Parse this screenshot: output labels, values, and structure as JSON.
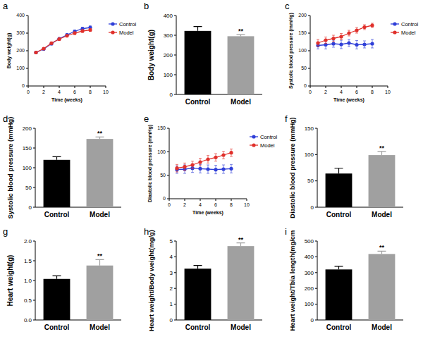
{
  "chart_data": [
    {
      "type": "line",
      "title": "a",
      "x": [
        1,
        2,
        3,
        4,
        5,
        6,
        7,
        8
      ],
      "xlim": [
        0,
        10
      ],
      "xticks": [
        0,
        2,
        4,
        6,
        8,
        10
      ],
      "ylim": [
        0,
        400
      ],
      "yticks": [
        0,
        100,
        200,
        300,
        400
      ],
      "x_label": "Time (weeks)",
      "y_label": "Body weight(g)",
      "legend": "right",
      "series": [
        {
          "name": "Control",
          "color": "#2f3fd8",
          "marker": "circle",
          "values": [
            190,
            210,
            240,
            268,
            290,
            310,
            325,
            332
          ],
          "errors": [
            6,
            6,
            7,
            7,
            8,
            8,
            9,
            9
          ]
        },
        {
          "name": "Model",
          "color": "#e0302b",
          "marker": "circle",
          "values": [
            190,
            212,
            243,
            266,
            285,
            300,
            312,
            318
          ],
          "errors": [
            6,
            6,
            7,
            7,
            7,
            8,
            8,
            8
          ]
        }
      ]
    },
    {
      "type": "bar",
      "title": "b",
      "categories": [
        "Control",
        "Model"
      ],
      "values": [
        322,
        295
      ],
      "errors": [
        22,
        8
      ],
      "colors": [
        "#000000",
        "#a0a0a0"
      ],
      "ylim": [
        0,
        400
      ],
      "yticks": [
        0,
        100,
        200,
        300,
        400
      ],
      "y_label": "Body weight(g)",
      "annotations": [
        {
          "text": "**",
          "x": "Model"
        }
      ]
    },
    {
      "type": "line",
      "title": "c",
      "x": [
        1,
        2,
        3,
        4,
        5,
        6,
        7,
        8
      ],
      "xlim": [
        0,
        10
      ],
      "xticks": [
        0,
        2,
        4,
        6,
        8,
        10
      ],
      "ylim": [
        0,
        200
      ],
      "yticks": [
        0,
        50,
        100,
        150,
        200
      ],
      "x_label": "Time (weeks)",
      "y_label": "Systolic blood pressure (mmHg)",
      "legend": "right",
      "series": [
        {
          "name": "Control",
          "color": "#2f3fd8",
          "marker": "circle",
          "values": [
            115,
            117,
            120,
            118,
            122,
            117,
            118,
            120
          ],
          "errors": [
            10,
            12,
            10,
            12,
            10,
            12,
            10,
            12
          ]
        },
        {
          "name": "Model",
          "color": "#e0302b",
          "marker": "circle",
          "values": [
            122,
            130,
            135,
            140,
            150,
            158,
            167,
            172
          ],
          "errors": [
            10,
            9,
            9,
            9,
            8,
            8,
            7,
            6
          ]
        }
      ]
    },
    {
      "type": "bar",
      "title": "d",
      "categories": [
        "Control",
        "Model"
      ],
      "values": [
        120,
        173
      ],
      "errors": [
        8,
        5
      ],
      "colors": [
        "#000000",
        "#a0a0a0"
      ],
      "ylim": [
        0,
        200
      ],
      "yticks": [
        0,
        50,
        100,
        150,
        200
      ],
      "y_label": "Systolic blood pressure (mmHg)",
      "annotations": [
        {
          "text": "**",
          "x": "Model"
        }
      ]
    },
    {
      "type": "line",
      "title": "e",
      "x": [
        1,
        2,
        3,
        4,
        5,
        6,
        7,
        8
      ],
      "xlim": [
        0,
        10
      ],
      "xticks": [
        0,
        2,
        4,
        6,
        8,
        10
      ],
      "ylim": [
        0,
        150
      ],
      "yticks": [
        0,
        50,
        100,
        150
      ],
      "x_label": "Time (weeks)",
      "y_label": "Diastolic blood pressure (mmHg)",
      "legend": "right",
      "series": [
        {
          "name": "Control",
          "color": "#2f3fd8",
          "marker": "circle",
          "values": [
            62,
            63,
            65,
            64,
            63,
            62,
            63,
            64
          ],
          "errors": [
            8,
            9,
            9,
            9,
            9,
            9,
            9,
            9
          ]
        },
        {
          "name": "Model",
          "color": "#e0302b",
          "marker": "circle",
          "values": [
            65,
            68,
            72,
            78,
            84,
            88,
            93,
            98
          ],
          "errors": [
            8,
            8,
            8,
            8,
            8,
            8,
            8,
            8
          ]
        }
      ]
    },
    {
      "type": "bar",
      "title": "f",
      "categories": [
        "Control",
        "Model"
      ],
      "values": [
        64,
        99
      ],
      "errors": [
        10,
        7
      ],
      "colors": [
        "#000000",
        "#a0a0a0"
      ],
      "ylim": [
        0,
        150
      ],
      "yticks": [
        0,
        50,
        100,
        150
      ],
      "y_label": "Diastolic blood pressure (mmHg)",
      "annotations": [
        {
          "text": "**",
          "x": "Model"
        }
      ]
    },
    {
      "type": "bar",
      "title": "g",
      "categories": [
        "Control",
        "Model"
      ],
      "values": [
        1.04,
        1.38
      ],
      "errors": [
        0.08,
        0.15
      ],
      "colors": [
        "#000000",
        "#a0a0a0"
      ],
      "ylim": [
        0,
        2
      ],
      "yticks": [
        {
          "value": 0,
          "label": "0.0"
        },
        0.5,
        {
          "value": 1,
          "label": "1.0"
        },
        1.5,
        {
          "value": 2,
          "label": "2.0"
        }
      ],
      "y_label": "Heart weight(g)",
      "annotations": [
        {
          "text": "**",
          "x": "Model"
        }
      ]
    },
    {
      "type": "bar",
      "title": "h",
      "categories": [
        "Control",
        "Model"
      ],
      "values": [
        3.25,
        4.68
      ],
      "errors": [
        0.2,
        0.2
      ],
      "colors": [
        "#000000",
        "#a0a0a0"
      ],
      "ylim": [
        0,
        5
      ],
      "yticks": [
        0,
        1,
        2,
        3,
        4,
        5
      ],
      "y_label": "Heart weight/Body weight(mg/g)",
      "annotations": [
        {
          "text": "**",
          "x": "Model"
        }
      ]
    },
    {
      "type": "bar",
      "title": "i",
      "categories": [
        "Control",
        "Model"
      ],
      "values": [
        320,
        418
      ],
      "errors": [
        20,
        18
      ],
      "colors": [
        "#000000",
        "#a0a0a0"
      ],
      "ylim": [
        0,
        500
      ],
      "yticks": [
        0,
        100,
        200,
        300,
        400,
        500
      ],
      "y_label": "Heart weight/Tbia length(mg/cm",
      "annotations": [
        {
          "text": "**",
          "x": "Model"
        }
      ]
    }
  ]
}
